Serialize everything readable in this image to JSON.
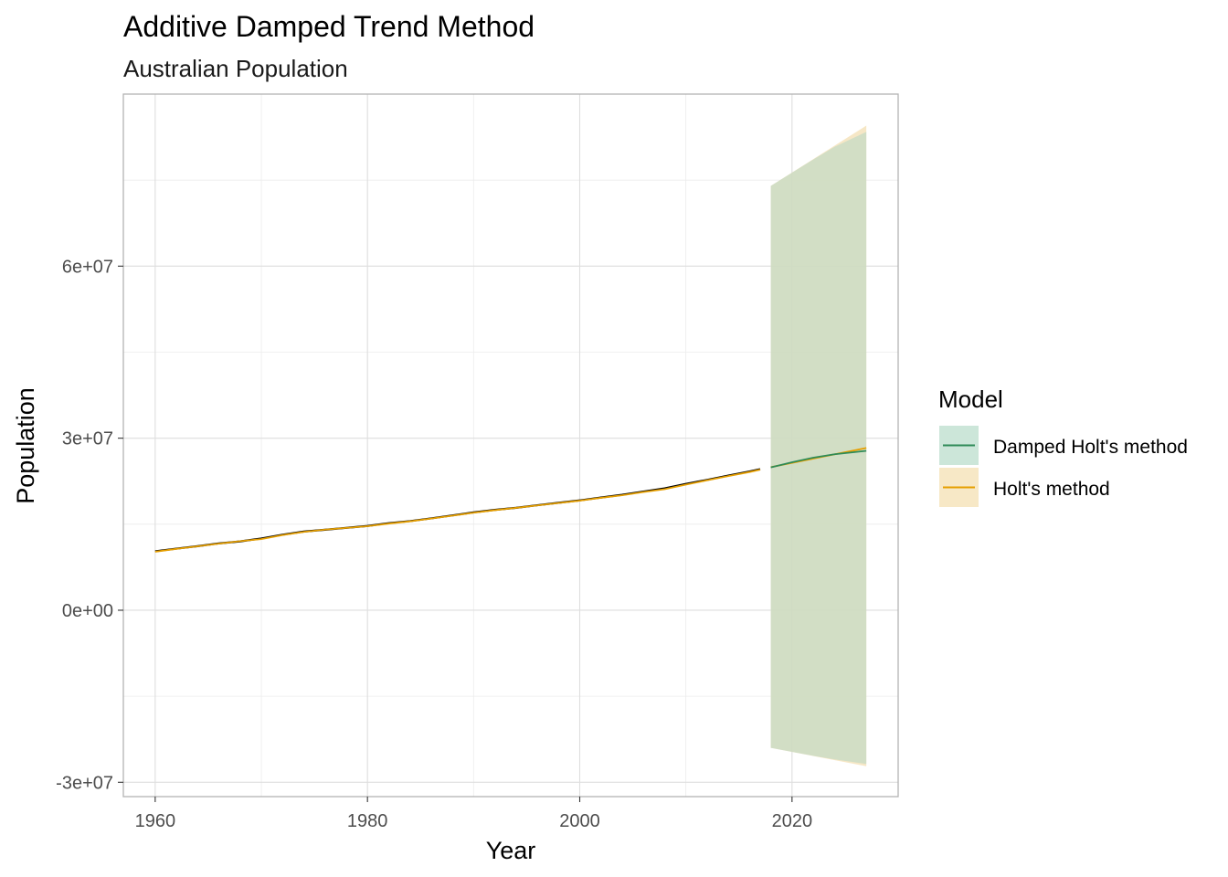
{
  "chart_data": {
    "type": "line",
    "title": "Additive Damped Trend Method",
    "subtitle": "Australian Population",
    "xlabel": "Year",
    "ylabel": "Population",
    "xlim": [
      1957,
      2030
    ],
    "ylim": [
      -32500000,
      90000000
    ],
    "x_ticks": [
      1960,
      1980,
      2000,
      2020
    ],
    "x_tick_labels": [
      "1960",
      "1980",
      "2000",
      "2020"
    ],
    "y_ticks": [
      -30000000,
      0,
      30000000,
      60000000
    ],
    "y_tick_labels": [
      "-3e+07",
      "0e+00",
      "3e+07",
      "6e+07"
    ],
    "grid": true,
    "legend": {
      "title": "Model",
      "position": "right",
      "items": [
        {
          "label": "Damped Holt's method",
          "color": "#2e8b57",
          "fill": "#cce6d9"
        },
        {
          "label": "Holt's method",
          "color": "#e69f00",
          "fill": "#f7e8c6"
        }
      ]
    },
    "history": {
      "name": "",
      "color": "#000000",
      "x": [
        1960,
        1962,
        1964,
        1966,
        1968,
        1970,
        1972,
        1974,
        1976,
        1978,
        1980,
        1982,
        1984,
        1986,
        1988,
        1990,
        1992,
        1994,
        1996,
        1998,
        2000,
        2002,
        2004,
        2006,
        2008,
        2010,
        2012,
        2014,
        2016,
        2017
      ],
      "y": [
        10280000,
        10740000,
        11170000,
        11650000,
        12000000,
        12510000,
        13170000,
        13720000,
        14030000,
        14360000,
        14690000,
        15180000,
        15540000,
        16020000,
        16530000,
        17060000,
        17500000,
        17860000,
        18310000,
        18730000,
        19150000,
        19650000,
        20130000,
        20700000,
        21250000,
        22030000,
        22730000,
        23480000,
        24190000,
        24600000
      ]
    },
    "fitted": {
      "name": "Holt's method",
      "color": "#e69f00",
      "x": [
        1960,
        1962,
        1964,
        1966,
        1968,
        1970,
        1972,
        1974,
        1976,
        1978,
        1980,
        1982,
        1984,
        1986,
        1988,
        1990,
        1992,
        1994,
        1996,
        1998,
        2000,
        2002,
        2004,
        2006,
        2008,
        2010,
        2012,
        2014,
        2016,
        2017
      ],
      "y": [
        10200000,
        10700000,
        11150000,
        11600000,
        12050000,
        12400000,
        13100000,
        13650000,
        14050000,
        14350000,
        14650000,
        15100000,
        15500000,
        15980000,
        16480000,
        17000000,
        17450000,
        17850000,
        18280000,
        18700000,
        19100000,
        19600000,
        20050000,
        20600000,
        21100000,
        21900000,
        22650000,
        23400000,
        24100000,
        24500000
      ]
    },
    "forecast_series": [
      {
        "name": "Holt's method",
        "line_color": "#e69f00",
        "band_color": "#f5e3bc",
        "x": [
          2018,
          2027
        ],
        "y": [
          24950000,
          28300000
        ],
        "lower": [
          -24000000,
          -27200000
        ],
        "upper": [
          74000000,
          84500000
        ]
      },
      {
        "name": "Damped Holt's method",
        "line_color": "#2e8b57",
        "band_color": "#bfd9c4",
        "x": [
          2018,
          2020,
          2022,
          2024,
          2027
        ],
        "y": [
          24900000,
          25800000,
          26600000,
          27200000,
          27800000
        ],
        "lower": [
          -24000000,
          -24700000,
          -25400000,
          -26000000,
          -26800000
        ],
        "upper": [
          74000000,
          76300000,
          78600000,
          80800000,
          83400000
        ]
      }
    ]
  }
}
